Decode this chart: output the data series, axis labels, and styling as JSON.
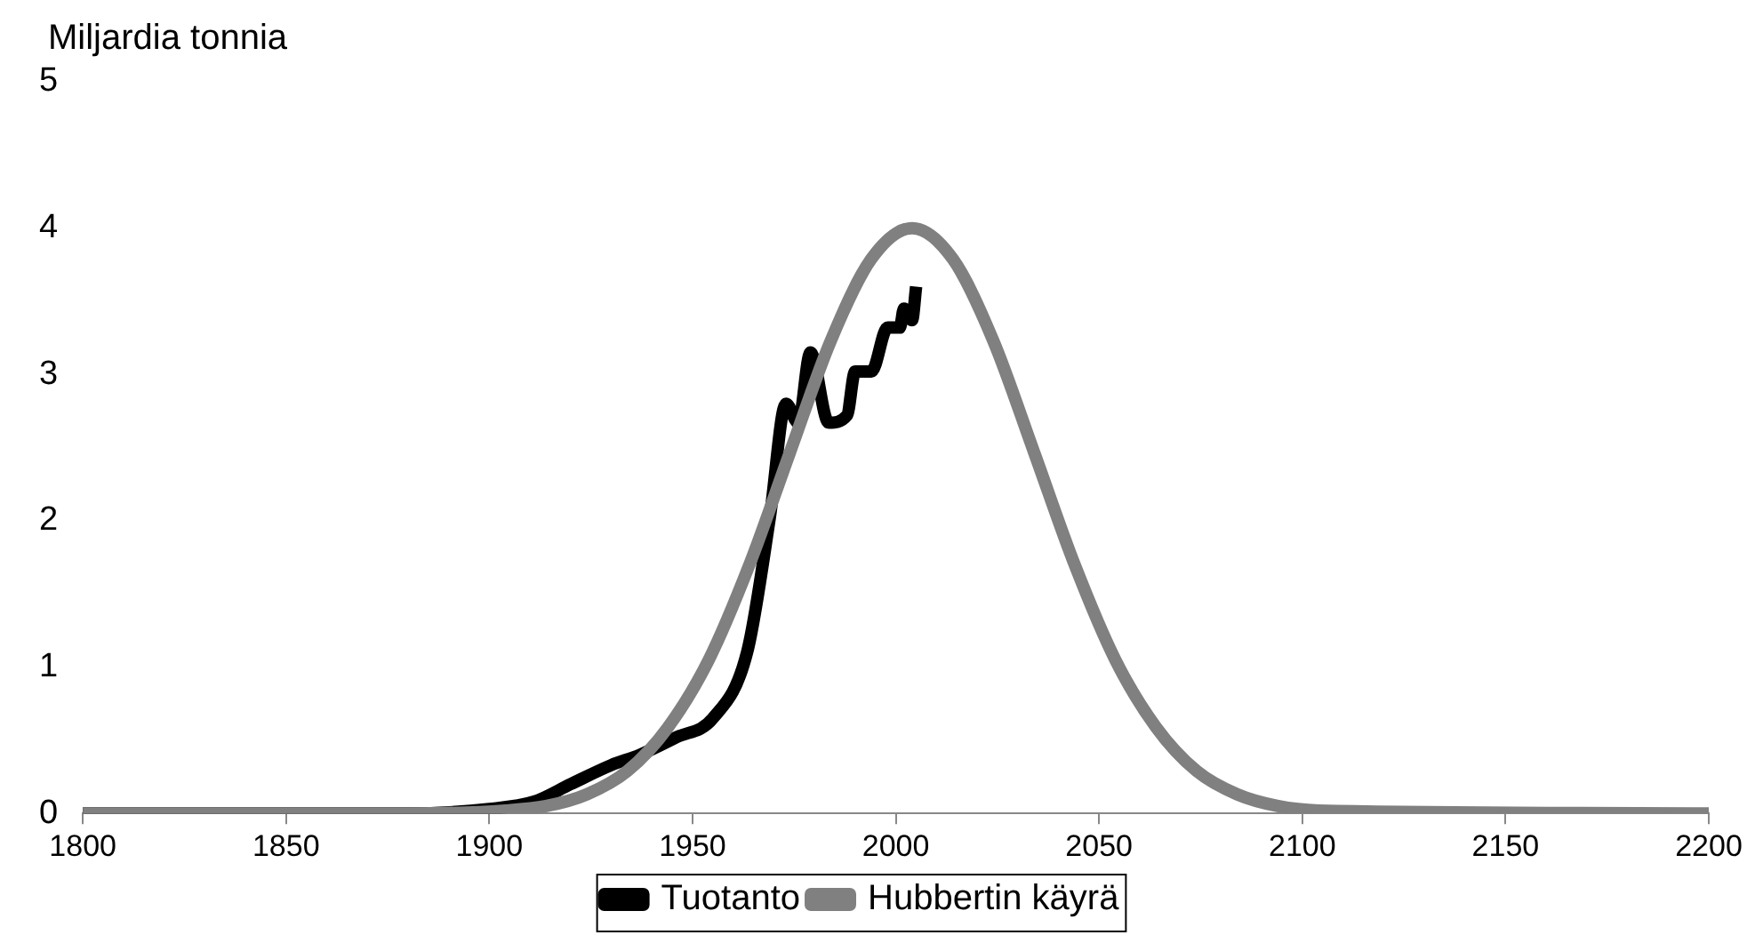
{
  "chart_data": {
    "type": "line",
    "ylabel": "Miljardia tonnia",
    "xlim": [
      1800,
      2200
    ],
    "xticks": [
      1800,
      1850,
      1900,
      1950,
      2000,
      2050,
      2100,
      2150,
      2200
    ],
    "ylim": [
      0,
      5
    ],
    "yticks": [
      0,
      1,
      2,
      3,
      4,
      5
    ],
    "grid": false,
    "legend": "bottom",
    "marker": "none",
    "line_style": "solid",
    "series": [
      {
        "name": "Tuotanto",
        "color": "#000000",
        "x": [
          1800,
          1880,
          1900,
          1911,
          1920,
          1930,
          1937,
          1946,
          1955,
          1963.5,
          1969,
          1973,
          1976,
          1979,
          1983.5,
          1988,
          1990,
          1994,
          1998,
          2001,
          2002,
          2004,
          2005
        ],
        "values": [
          0,
          0,
          0.03,
          0.08,
          0.2,
          0.33,
          0.4,
          0.52,
          0.65,
          1.11,
          2.02,
          2.8,
          2.67,
          3.15,
          2.67,
          2.72,
          3.02,
          3.02,
          3.32,
          3.32,
          3.45,
          3.37,
          3.6
        ]
      },
      {
        "name": "Hubbertin käyrä",
        "color": "#808080",
        "x": [
          1800,
          1880,
          1904,
          1914,
          1924,
          1934,
          1944,
          1954,
          1964,
          1974,
          1984,
          1994,
          2004,
          2014,
          2024,
          2034,
          2044,
          2054,
          2064,
          2074,
          2084,
          2094,
          2104,
          2200
        ],
        "values": [
          0,
          0,
          0.02,
          0.05,
          0.13,
          0.29,
          0.59,
          1.05,
          1.7,
          2.47,
          3.23,
          3.79,
          4.0,
          3.79,
          3.23,
          2.47,
          1.7,
          1.05,
          0.59,
          0.29,
          0.13,
          0.05,
          0.02,
          0
        ]
      }
    ]
  }
}
